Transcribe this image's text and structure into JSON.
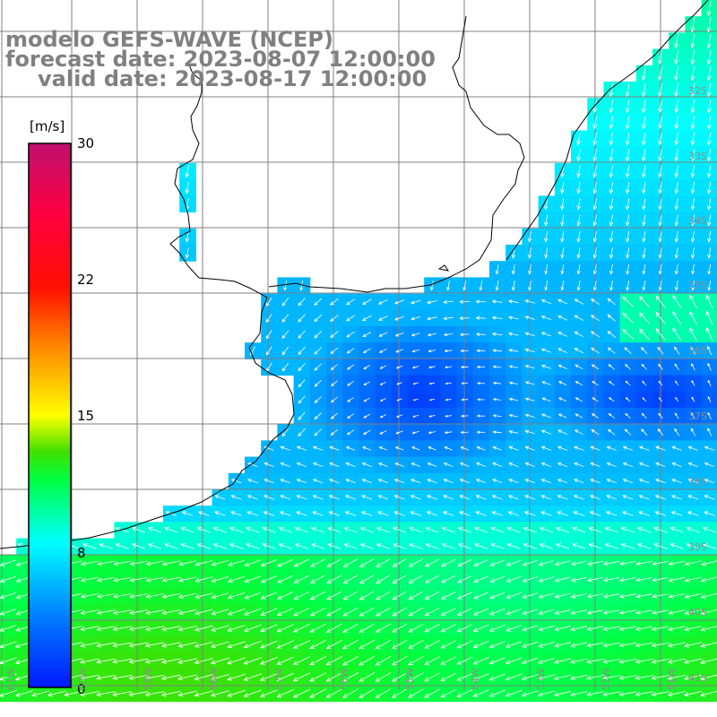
{
  "title": {
    "line1": "modelo GEFS-WAVE (NCEP)",
    "line2": "forecast date: 2023-08-07 12:00:00",
    "line3": "valid date: 2023-08-17 12:00:00"
  },
  "colorbar": {
    "unit": "[m/s]",
    "ticks": [
      "30",
      "22",
      "15",
      "8",
      "0"
    ],
    "tick_values": [
      30,
      22,
      15,
      8,
      0
    ],
    "stops": [
      {
        "v": 0,
        "c": "#0018ff"
      },
      {
        "v": 4,
        "c": "#0080ff"
      },
      {
        "v": 8,
        "c": "#00ffff"
      },
      {
        "v": 11.5,
        "c": "#00ff40"
      },
      {
        "v": 13,
        "c": "#40e000"
      },
      {
        "v": 15,
        "c": "#ffff00"
      },
      {
        "v": 19,
        "c": "#ff8000"
      },
      {
        "v": 22,
        "c": "#ff1000"
      },
      {
        "v": 26,
        "c": "#ff0040"
      },
      {
        "v": 30,
        "c": "#c01070"
      }
    ]
  },
  "lat_labels": [
    "32S",
    "33S",
    "34S",
    "35S",
    "36S",
    "37S",
    "38S",
    "39S",
    "40S",
    "41S"
  ],
  "lon_labels": [
    "61W",
    "60W",
    "59W",
    "58W",
    "57W",
    "56W",
    "55W",
    "54W",
    "53W",
    "52W",
    "51W"
  ],
  "colors": {
    "land": "#ffffff",
    "coast": "#000000",
    "grid": "#808080",
    "arrow": "#ffffff",
    "title": "#808080"
  }
}
